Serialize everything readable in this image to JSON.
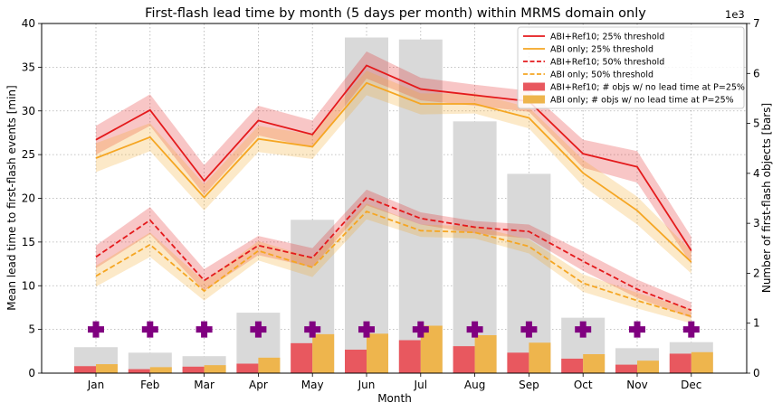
{
  "chart_data": {
    "type": "line",
    "title": "First-flash lead time by month (5 days per month) within MRMS domain only",
    "xlabel": "Month",
    "ylabel": "Mean lead time to first-flash events [min]",
    "y2label": "Number of first-flash objects [bars]",
    "y2_multiplier": "1e3",
    "categories": [
      "Jan",
      "Feb",
      "Mar",
      "Apr",
      "May",
      "Jun",
      "Jul",
      "Aug",
      "Sep",
      "Oct",
      "Nov",
      "Dec"
    ],
    "ylim": [
      0,
      40
    ],
    "y2lim": [
      0,
      7
    ],
    "yticks": [
      "0",
      "5",
      "10",
      "15",
      "20",
      "25",
      "30",
      "35",
      "40"
    ],
    "y2ticks": [
      "0",
      "1",
      "2",
      "3",
      "4",
      "5",
      "6",
      "7"
    ],
    "grid": true,
    "legend_position": "top-right",
    "colors": {
      "abi_ref10": "#e41a1c",
      "abi_only": "#f5a623",
      "abi_ref10_bar": "#e8585f",
      "abi_only_bar": "#eeb54d",
      "total_bar": "#d9d9d9",
      "marker": "#800080",
      "grid": "#b0b0b0"
    },
    "series": [
      {
        "name": "ABI+Ref10; 25% threshold",
        "style": "solid",
        "color": "#e41a1c",
        "values": [
          26.7,
          30.1,
          22.0,
          28.9,
          27.3,
          35.2,
          32.5,
          31.8,
          31.1,
          25.1,
          23.6,
          14.0
        ],
        "band": [
          [
            25.0,
            28.3
          ],
          [
            28.3,
            31.9
          ],
          [
            20.4,
            23.8
          ],
          [
            27.2,
            30.6
          ],
          [
            25.8,
            28.9
          ],
          [
            33.7,
            36.8
          ],
          [
            31.2,
            33.8
          ],
          [
            30.6,
            33.0
          ],
          [
            29.9,
            32.3
          ],
          [
            23.5,
            26.7
          ],
          [
            21.8,
            25.4
          ],
          [
            12.5,
            15.6
          ]
        ]
      },
      {
        "name": "ABI only; 25% threshold",
        "style": "solid",
        "color": "#f5a623",
        "values": [
          24.6,
          27.0,
          20.1,
          26.8,
          25.9,
          33.2,
          30.8,
          30.8,
          29.2,
          22.9,
          18.6,
          12.7
        ],
        "band": [
          [
            23.0,
            26.3
          ],
          [
            25.4,
            28.6
          ],
          [
            18.6,
            21.6
          ],
          [
            25.3,
            28.3
          ],
          [
            24.5,
            27.3
          ],
          [
            31.8,
            34.6
          ],
          [
            29.6,
            32.0
          ],
          [
            29.7,
            32.0
          ],
          [
            28.0,
            30.4
          ],
          [
            21.4,
            24.4
          ],
          [
            17.0,
            20.2
          ],
          [
            11.4,
            14.0
          ]
        ]
      },
      {
        "name": "ABI+Ref10; 50% threshold",
        "style": "dashed",
        "color": "#e41a1c",
        "values": [
          13.3,
          17.5,
          10.6,
          14.6,
          13.2,
          20.1,
          17.7,
          16.7,
          16.2,
          12.8,
          9.6,
          7.2
        ],
        "band": [
          [
            12.0,
            14.6
          ],
          [
            15.9,
            19.0
          ],
          [
            9.4,
            11.9
          ],
          [
            13.5,
            15.7
          ],
          [
            12.1,
            14.3
          ],
          [
            19.2,
            21.0
          ],
          [
            17.0,
            18.4
          ],
          [
            16.0,
            17.4
          ],
          [
            15.4,
            17.0
          ],
          [
            11.7,
            13.9
          ],
          [
            8.6,
            10.7
          ],
          [
            6.3,
            8.1
          ]
        ]
      },
      {
        "name": "ABI only; 50% threshold",
        "style": "dashed",
        "color": "#f5a623",
        "values": [
          11.1,
          14.7,
          9.4,
          14.0,
          12.1,
          18.5,
          16.3,
          16.1,
          14.5,
          10.3,
          8.3,
          6.5
        ],
        "band": [
          [
            9.9,
            12.3
          ],
          [
            13.3,
            16.1
          ],
          [
            8.3,
            10.5
          ],
          [
            12.9,
            15.1
          ],
          [
            11.0,
            13.2
          ],
          [
            17.6,
            19.4
          ],
          [
            15.6,
            17.0
          ],
          [
            15.4,
            16.8
          ],
          [
            13.7,
            15.3
          ],
          [
            9.3,
            11.3
          ],
          [
            7.4,
            9.2
          ],
          [
            5.7,
            7.3
          ]
        ]
      }
    ],
    "bars": [
      {
        "name": "Total first-flash objects",
        "color": "#d9d9d9",
        "values": [
          0.52,
          0.41,
          0.34,
          1.21,
          3.07,
          6.72,
          6.68,
          5.04,
          3.99,
          1.11,
          0.5,
          0.62
        ]
      },
      {
        "name": "ABI+Ref10; # objs w/ no lead time at P=25%",
        "color": "#e8585f",
        "values": [
          0.14,
          0.08,
          0.13,
          0.19,
          0.6,
          0.47,
          0.66,
          0.54,
          0.41,
          0.29,
          0.17,
          0.39
        ]
      },
      {
        "name": "ABI only; # objs w/ no lead time at P=25%",
        "color": "#eeb54d",
        "values": [
          0.18,
          0.12,
          0.16,
          0.31,
          0.78,
          0.79,
          0.95,
          0.76,
          0.61,
          0.38,
          0.25,
          0.42
        ]
      }
    ],
    "marker_value": 5.0,
    "marker_glyph": "plus",
    "marker_color": "#800080"
  }
}
